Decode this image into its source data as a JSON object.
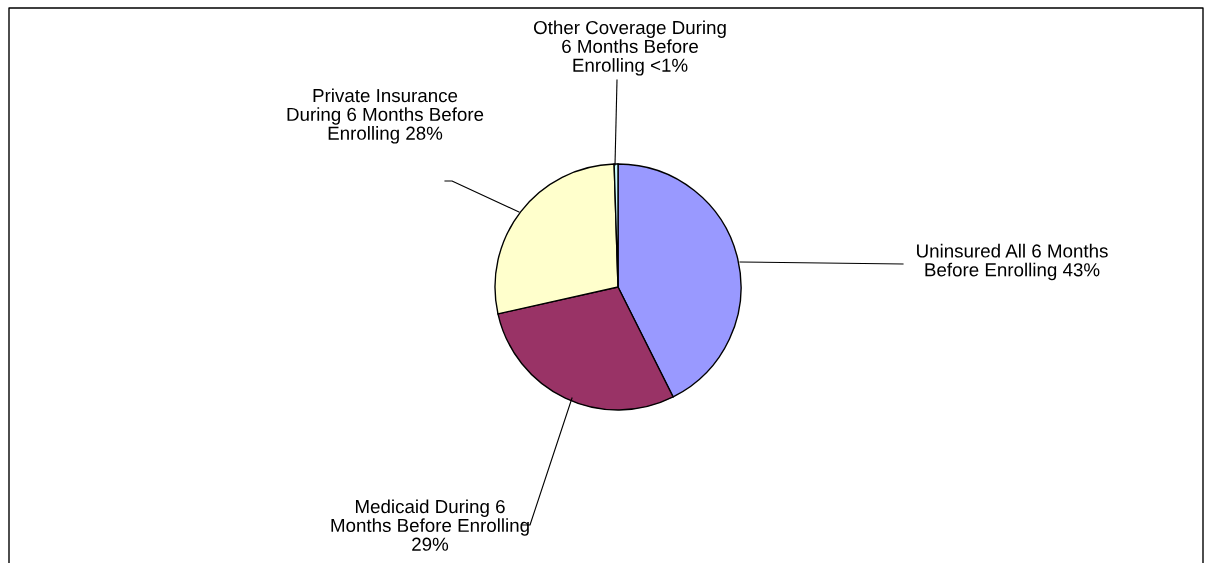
{
  "chart_data": {
    "type": "pie",
    "categories": [
      "Uninsured All 6 Months\nBefore Enrolling",
      "Medicaid During 6\nMonths Before Enrolling",
      "Private Insurance\nDuring 6 Months Before\nEnrolling",
      "Other Coverage During\n6 Months Before\nEnrolling"
    ],
    "values": [
      42.6,
      28.9,
      28,
      0.5
    ],
    "value_labels": [
      "43%",
      "29%",
      "28%",
      "<1%"
    ],
    "colors": [
      "#9999ff",
      "#993366",
      "#ffffcc",
      "#ccffff"
    ]
  }
}
